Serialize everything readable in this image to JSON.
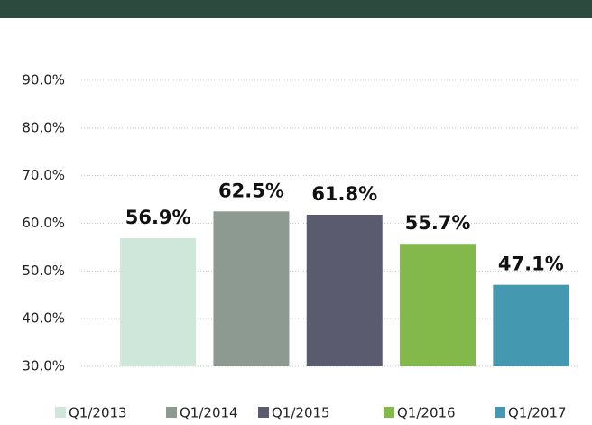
{
  "chart_data": {
    "type": "bar",
    "categories": [
      "Q1/2013",
      "Q1/2014",
      "Q1/2015",
      "Q1/2016",
      "Q1/2017"
    ],
    "values": [
      56.9,
      62.5,
      61.8,
      55.7,
      47.1
    ],
    "value_labels": [
      "56.9%",
      "62.5%",
      "61.8%",
      "55.7%",
      "47.1%"
    ],
    "colors": [
      "#cfe6da",
      "#8c9a92",
      "#5b5b70",
      "#83b94a",
      "#4499b0"
    ],
    "ylim": [
      30,
      90
    ],
    "yticks": [
      {
        "value": 30,
        "label": "30.0%"
      },
      {
        "value": 40,
        "label": "40.0%"
      },
      {
        "value": 50,
        "label": "50.0%"
      },
      {
        "value": 60,
        "label": "60.0%"
      },
      {
        "value": 70,
        "label": "70.0%"
      },
      {
        "value": 80,
        "label": "80.0%"
      },
      {
        "value": 90,
        "label": "90.0%"
      }
    ],
    "grid": true,
    "legend": "bottom"
  }
}
